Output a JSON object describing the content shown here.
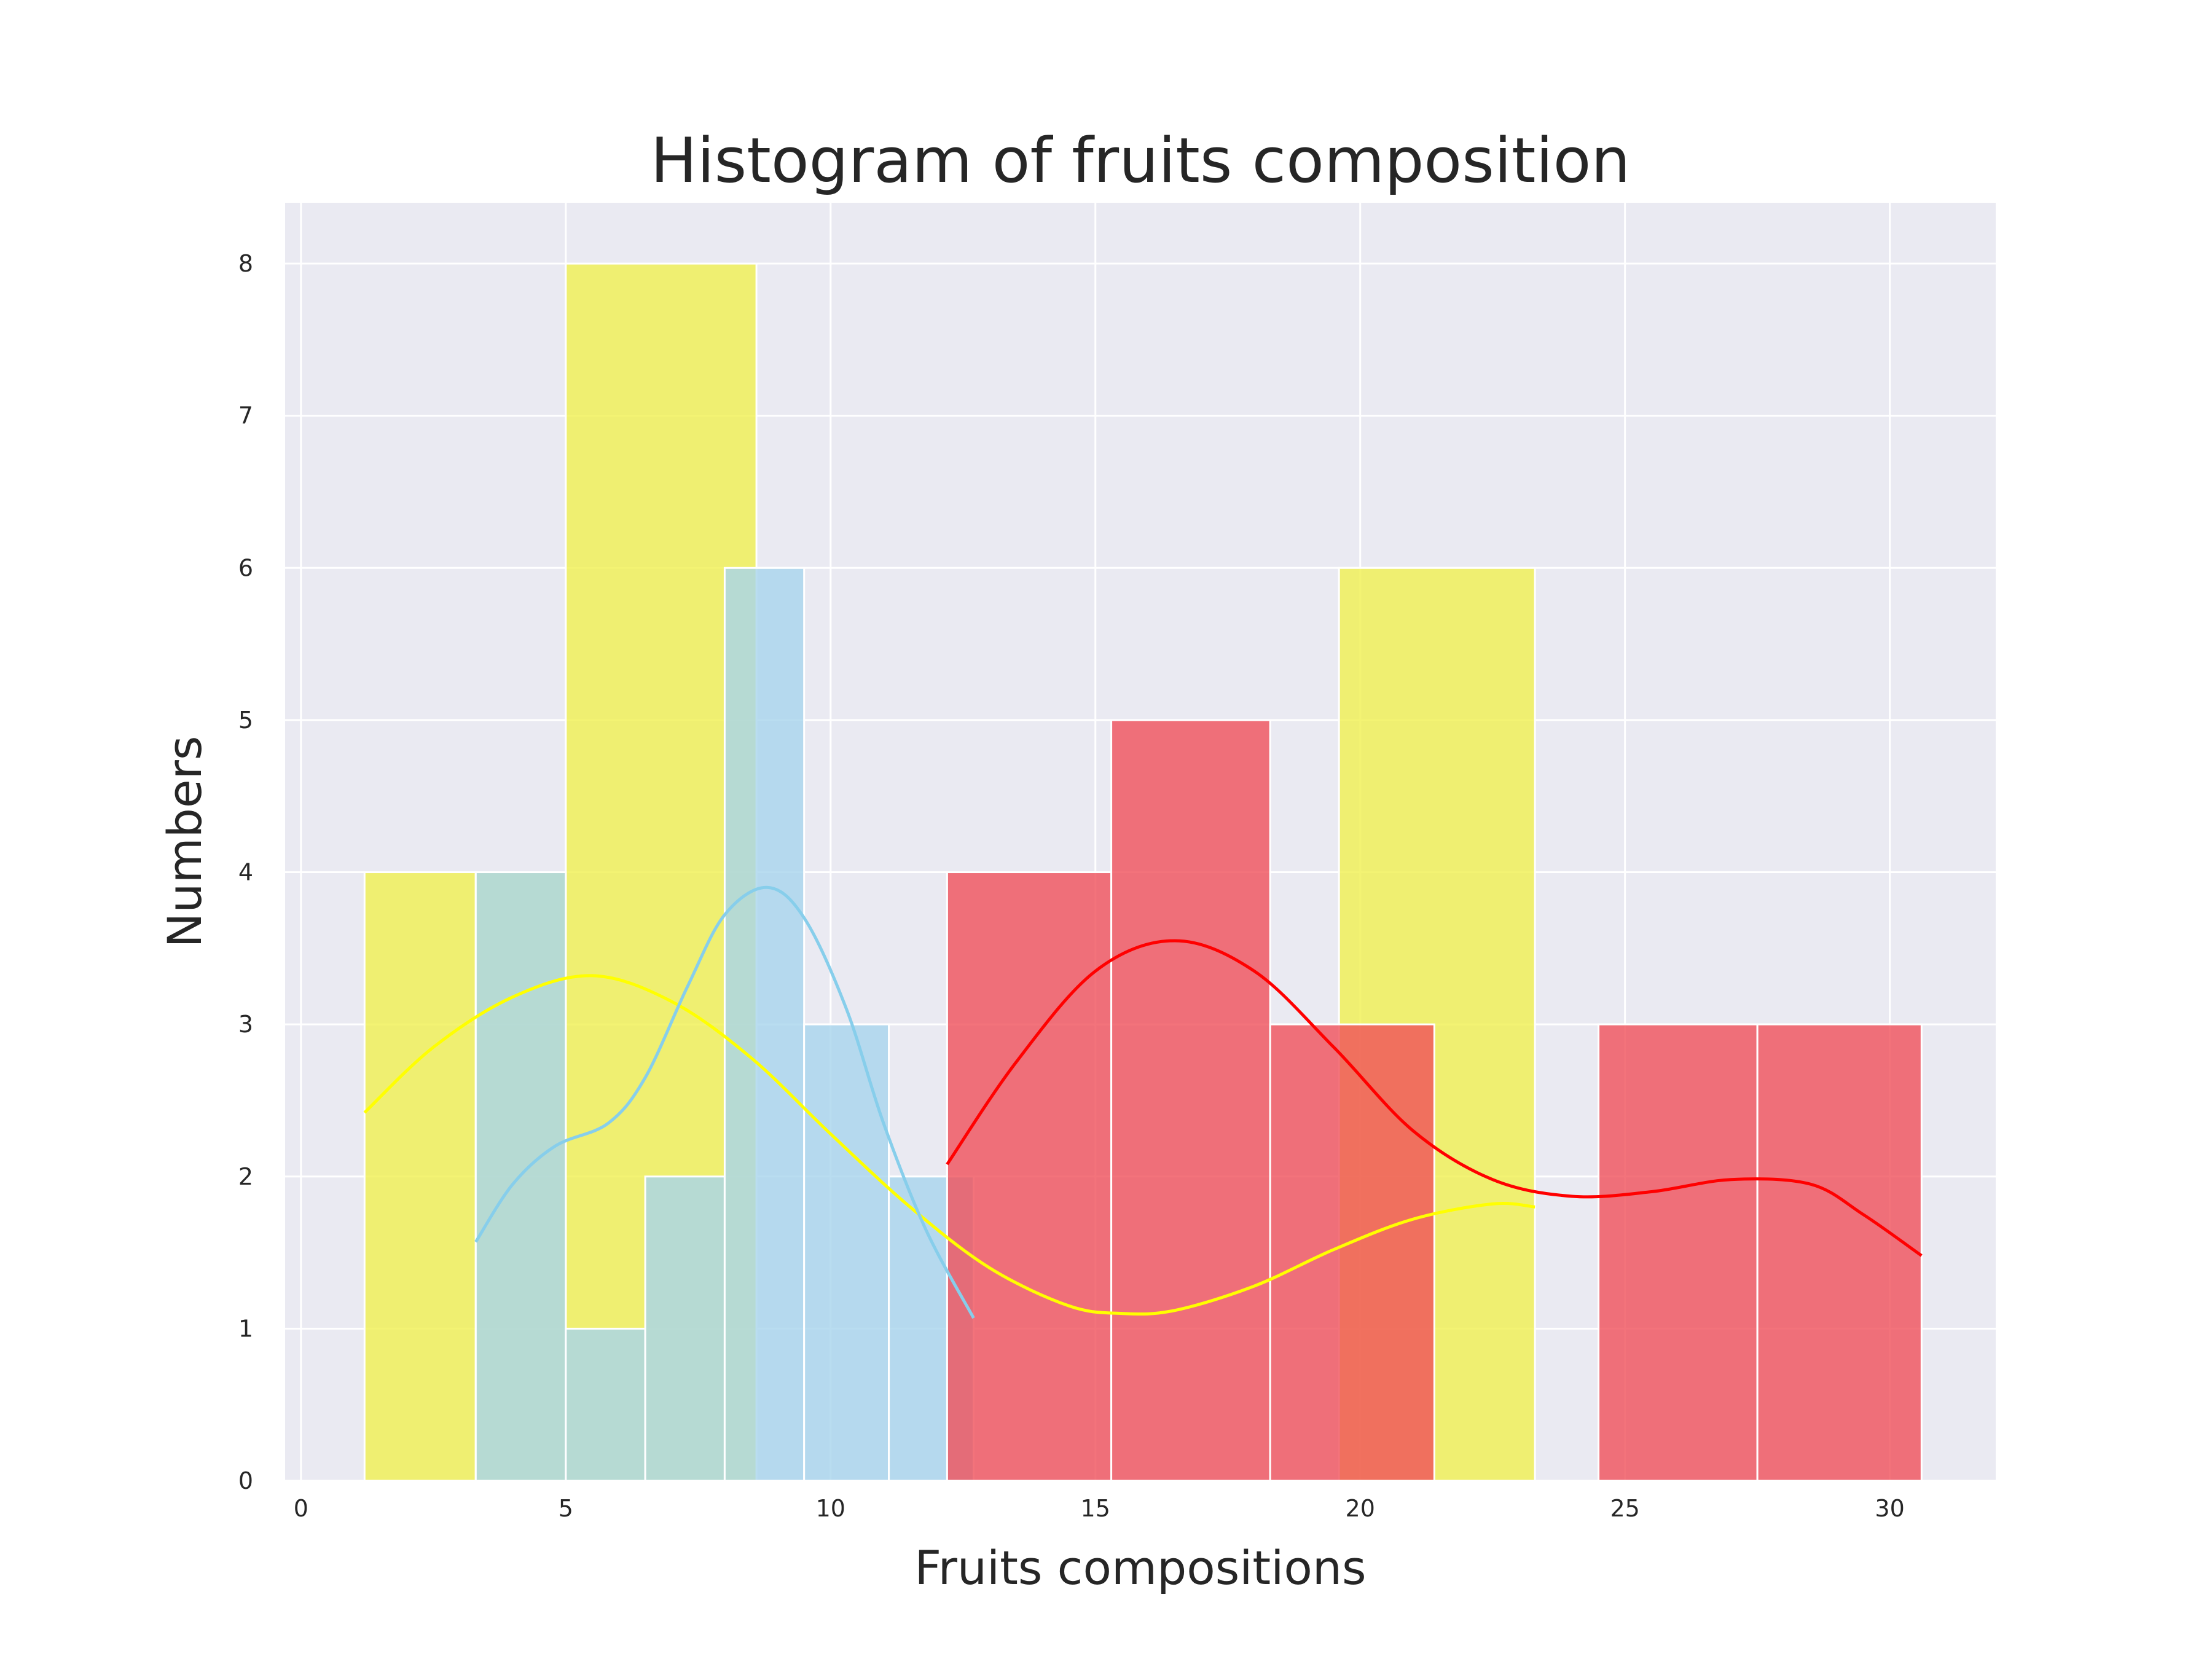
{
  "chart_data": {
    "type": "bar",
    "title": "Histogram of fruits composition",
    "xlabel": "Fruits compositions",
    "ylabel": "Numbers",
    "xlim": [
      -0.3,
      32
    ],
    "ylim": [
      0,
      8.4
    ],
    "x_ticks": [
      "0",
      "5",
      "10",
      "15",
      "20",
      "25",
      "30"
    ],
    "y_ticks": [
      "0",
      "1",
      "2",
      "3",
      "4",
      "5",
      "6",
      "7",
      "8"
    ],
    "grid": true,
    "background": "#eaeaf2",
    "series": [
      {
        "color": "#f0f050",
        "kde_color": "#ffff00",
        "bins": [
          {
            "x0": 1.2,
            "x1": 3.3,
            "count": 4
          },
          {
            "x0": 3.3,
            "x1": 5.0,
            "count": 4
          },
          {
            "x0": 5.0,
            "x1": 8.6,
            "count": 8
          },
          {
            "x0": 19.6,
            "x1": 23.3,
            "count": 6
          }
        ],
        "kde": [
          [
            1.2,
            2.42
          ],
          [
            2.5,
            2.85
          ],
          [
            4.0,
            3.18
          ],
          [
            5.5,
            3.32
          ],
          [
            7.0,
            3.15
          ],
          [
            8.5,
            2.78
          ],
          [
            10.0,
            2.28
          ],
          [
            11.5,
            1.8
          ],
          [
            13.0,
            1.4
          ],
          [
            14.5,
            1.15
          ],
          [
            15.5,
            1.1
          ],
          [
            16.5,
            1.12
          ],
          [
            18.0,
            1.28
          ],
          [
            19.5,
            1.52
          ],
          [
            21.0,
            1.72
          ],
          [
            22.5,
            1.82
          ],
          [
            23.3,
            1.8
          ]
        ]
      },
      {
        "color": "#a8d4ec",
        "kde_color": "#87ceeb",
        "bins": [
          {
            "x0": 3.3,
            "x1": 5.0,
            "count": 4
          },
          {
            "x0": 5.0,
            "x1": 6.5,
            "count": 1
          },
          {
            "x0": 6.5,
            "x1": 8.0,
            "count": 2
          },
          {
            "x0": 8.0,
            "x1": 9.5,
            "count": 6
          },
          {
            "x0": 9.5,
            "x1": 11.1,
            "count": 3
          },
          {
            "x0": 11.1,
            "x1": 12.7,
            "count": 2
          }
        ],
        "kde": [
          [
            3.3,
            1.57
          ],
          [
            4.0,
            1.95
          ],
          [
            4.8,
            2.2
          ],
          [
            5.8,
            2.35
          ],
          [
            6.5,
            2.65
          ],
          [
            7.3,
            3.25
          ],
          [
            8.0,
            3.72
          ],
          [
            8.8,
            3.9
          ],
          [
            9.5,
            3.7
          ],
          [
            10.3,
            3.1
          ],
          [
            11.0,
            2.35
          ],
          [
            11.8,
            1.65
          ],
          [
            12.7,
            1.07
          ]
        ]
      },
      {
        "color": "#f0505a",
        "kde_color": "#ff0000",
        "bins": [
          {
            "x0": 12.2,
            "x1": 15.3,
            "count": 4
          },
          {
            "x0": 15.3,
            "x1": 18.3,
            "count": 5
          },
          {
            "x0": 18.3,
            "x1": 21.4,
            "count": 3
          },
          {
            "x0": 24.5,
            "x1": 27.5,
            "count": 3
          },
          {
            "x0": 27.5,
            "x1": 30.6,
            "count": 3
          }
        ],
        "kde": [
          [
            12.2,
            2.08
          ],
          [
            13.5,
            2.75
          ],
          [
            15.0,
            3.35
          ],
          [
            16.5,
            3.55
          ],
          [
            18.0,
            3.35
          ],
          [
            19.5,
            2.85
          ],
          [
            21.0,
            2.3
          ],
          [
            22.5,
            1.98
          ],
          [
            24.0,
            1.87
          ],
          [
            25.5,
            1.9
          ],
          [
            27.0,
            1.98
          ],
          [
            28.5,
            1.95
          ],
          [
            29.5,
            1.75
          ],
          [
            30.6,
            1.48
          ]
        ]
      }
    ]
  }
}
